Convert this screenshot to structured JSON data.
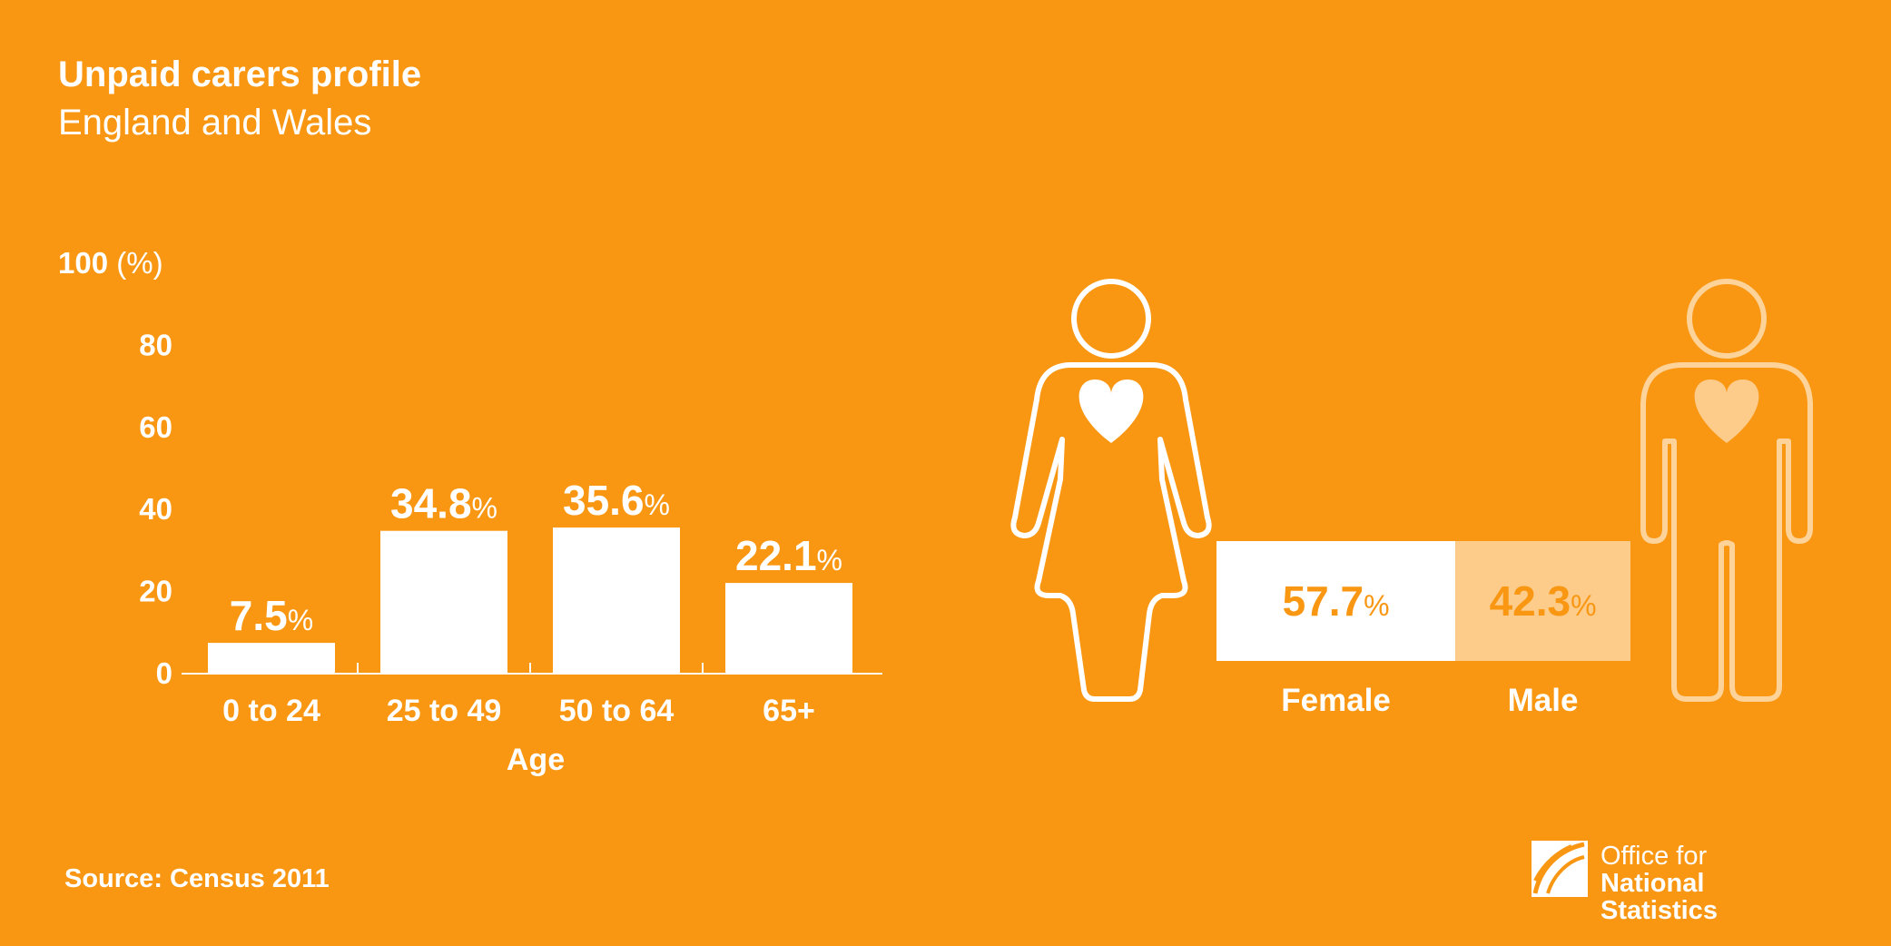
{
  "title": "Unpaid carers profile",
  "subtitle": "England and Wales",
  "source": "Source: Census 2011",
  "logo": {
    "line1": "Office for",
    "line2": "National Statistics",
    "icon": "ons-logo-icon"
  },
  "colors": {
    "background": "#F99713",
    "foreground": "#FFFFFF",
    "male_fill": "#FDCB8A",
    "male_outline": "#FDD39A",
    "label_text": "#F99713"
  },
  "chart_data": [
    {
      "type": "bar",
      "title": "",
      "xlabel": "Age",
      "ylabel": "(%)",
      "yaxis_top_label": "100",
      "ylim": [
        0,
        100
      ],
      "yticks": [
        0,
        20,
        40,
        60,
        80
      ],
      "categories": [
        "0 to 24",
        "25 to 49",
        "50 to 64",
        "65+"
      ],
      "values": [
        7.5,
        34.8,
        35.6,
        22.1
      ],
      "value_labels": [
        "7.5",
        "34.8",
        "35.6",
        "22.1"
      ],
      "unit": "%",
      "grid": false
    },
    {
      "type": "bar",
      "orientation": "horizontal-stacked",
      "categories": [
        "Female",
        "Male"
      ],
      "values": [
        57.7,
        42.3
      ],
      "value_labels": [
        "57.7",
        "42.3"
      ],
      "unit": "%",
      "icons": [
        "female-figure-icon",
        "male-figure-icon"
      ]
    }
  ]
}
